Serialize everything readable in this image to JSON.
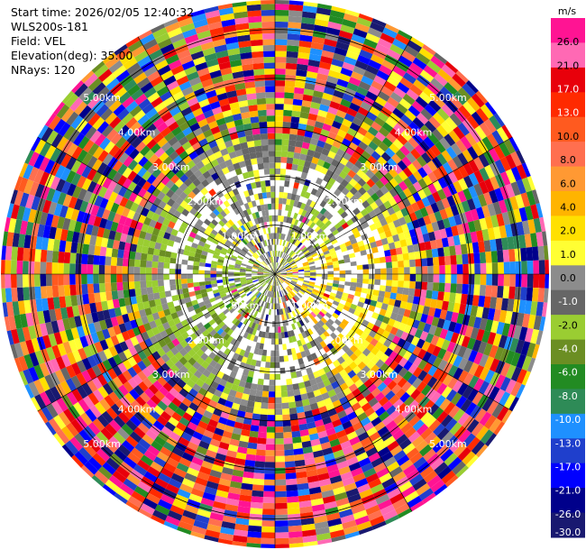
{
  "header": {
    "start_time": "Start time: 2026/02/05 12:40:32",
    "instrument": "WLS200s-181",
    "field": "Field: VEL",
    "elevation": "Elevation(deg): 35.00",
    "nrays": "NRays: 120"
  },
  "chart_data": {
    "type": "heatmap",
    "projection": "polar-ppi",
    "field": "VEL",
    "elevation_deg": 35.0,
    "nrays": 120,
    "range_unit": "km",
    "ring_labels": [
      "1.00km",
      "2.00km",
      "3.00km",
      "4.00km",
      "5.00km"
    ],
    "ring_ranges_km": [
      1,
      2,
      3,
      4,
      5
    ],
    "max_range_km": 5.6,
    "colorbar": {
      "unit": "m/s",
      "tick_labels": [
        "26.0",
        "21.0",
        "17.0",
        "13.0",
        "10.0",
        "8.0",
        "6.0",
        "4.0",
        "2.0",
        "1.0",
        "0.0",
        "-1.0",
        "-2.0",
        "-4.0",
        "-6.0",
        "-8.0",
        "-10.0",
        "-13.0",
        "-17.0",
        "-21.0",
        "-26.0",
        "-30.0"
      ],
      "colors": [
        "#ff1493",
        "#ff69b4",
        "#e8000b",
        "#ff2a00",
        "#ff5a1f",
        "#ff6f4f",
        "#ff9933",
        "#ffb400",
        "#ffe000",
        "#ffff33",
        "#8c8c8c",
        "#666666",
        "#9acd32",
        "#6b8e23",
        "#228b22",
        "#2e8b57",
        "#1e90ff",
        "#1f3fcc",
        "#0000ff",
        "#00008b",
        "#191970"
      ]
    }
  }
}
